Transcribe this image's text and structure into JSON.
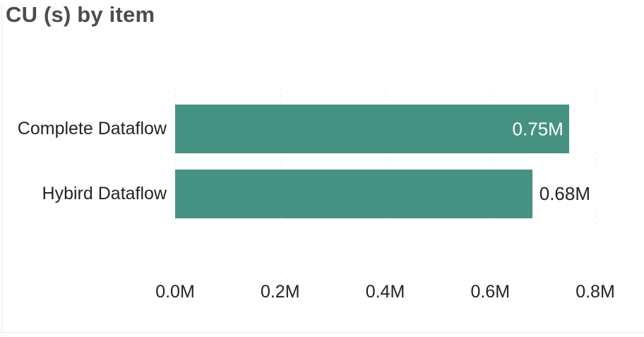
{
  "chart_data": {
    "type": "bar",
    "orientation": "horizontal",
    "title": "CU (s) by item",
    "categories": [
      "Complete Dataflow",
      "Hybird Dataflow"
    ],
    "values": [
      0.75,
      0.68
    ],
    "unit": "M",
    "value_labels": [
      "0.75M",
      "0.68M"
    ],
    "value_label_positions": [
      "inside-end",
      "outside-end"
    ],
    "x_tick_labels": [
      "0.0M",
      "0.2M",
      "0.4M",
      "0.6M",
      "0.8M"
    ],
    "x_tick_values": [
      0.0,
      0.2,
      0.4,
      0.6,
      0.8
    ],
    "xlim": [
      0.0,
      0.8
    ],
    "xlabel": "",
    "ylabel": "",
    "grid": "vertical-dotted",
    "legend": "none"
  },
  "colors": {
    "bar": "#459182",
    "title_text": "#4c4c4c",
    "axis_text": "#252423",
    "data_label_inside": "#ffffff",
    "data_label_outside": "#252423",
    "gridline": "#e8e8e8",
    "card_border": "#ebebeb",
    "background": "#ffffff"
  }
}
